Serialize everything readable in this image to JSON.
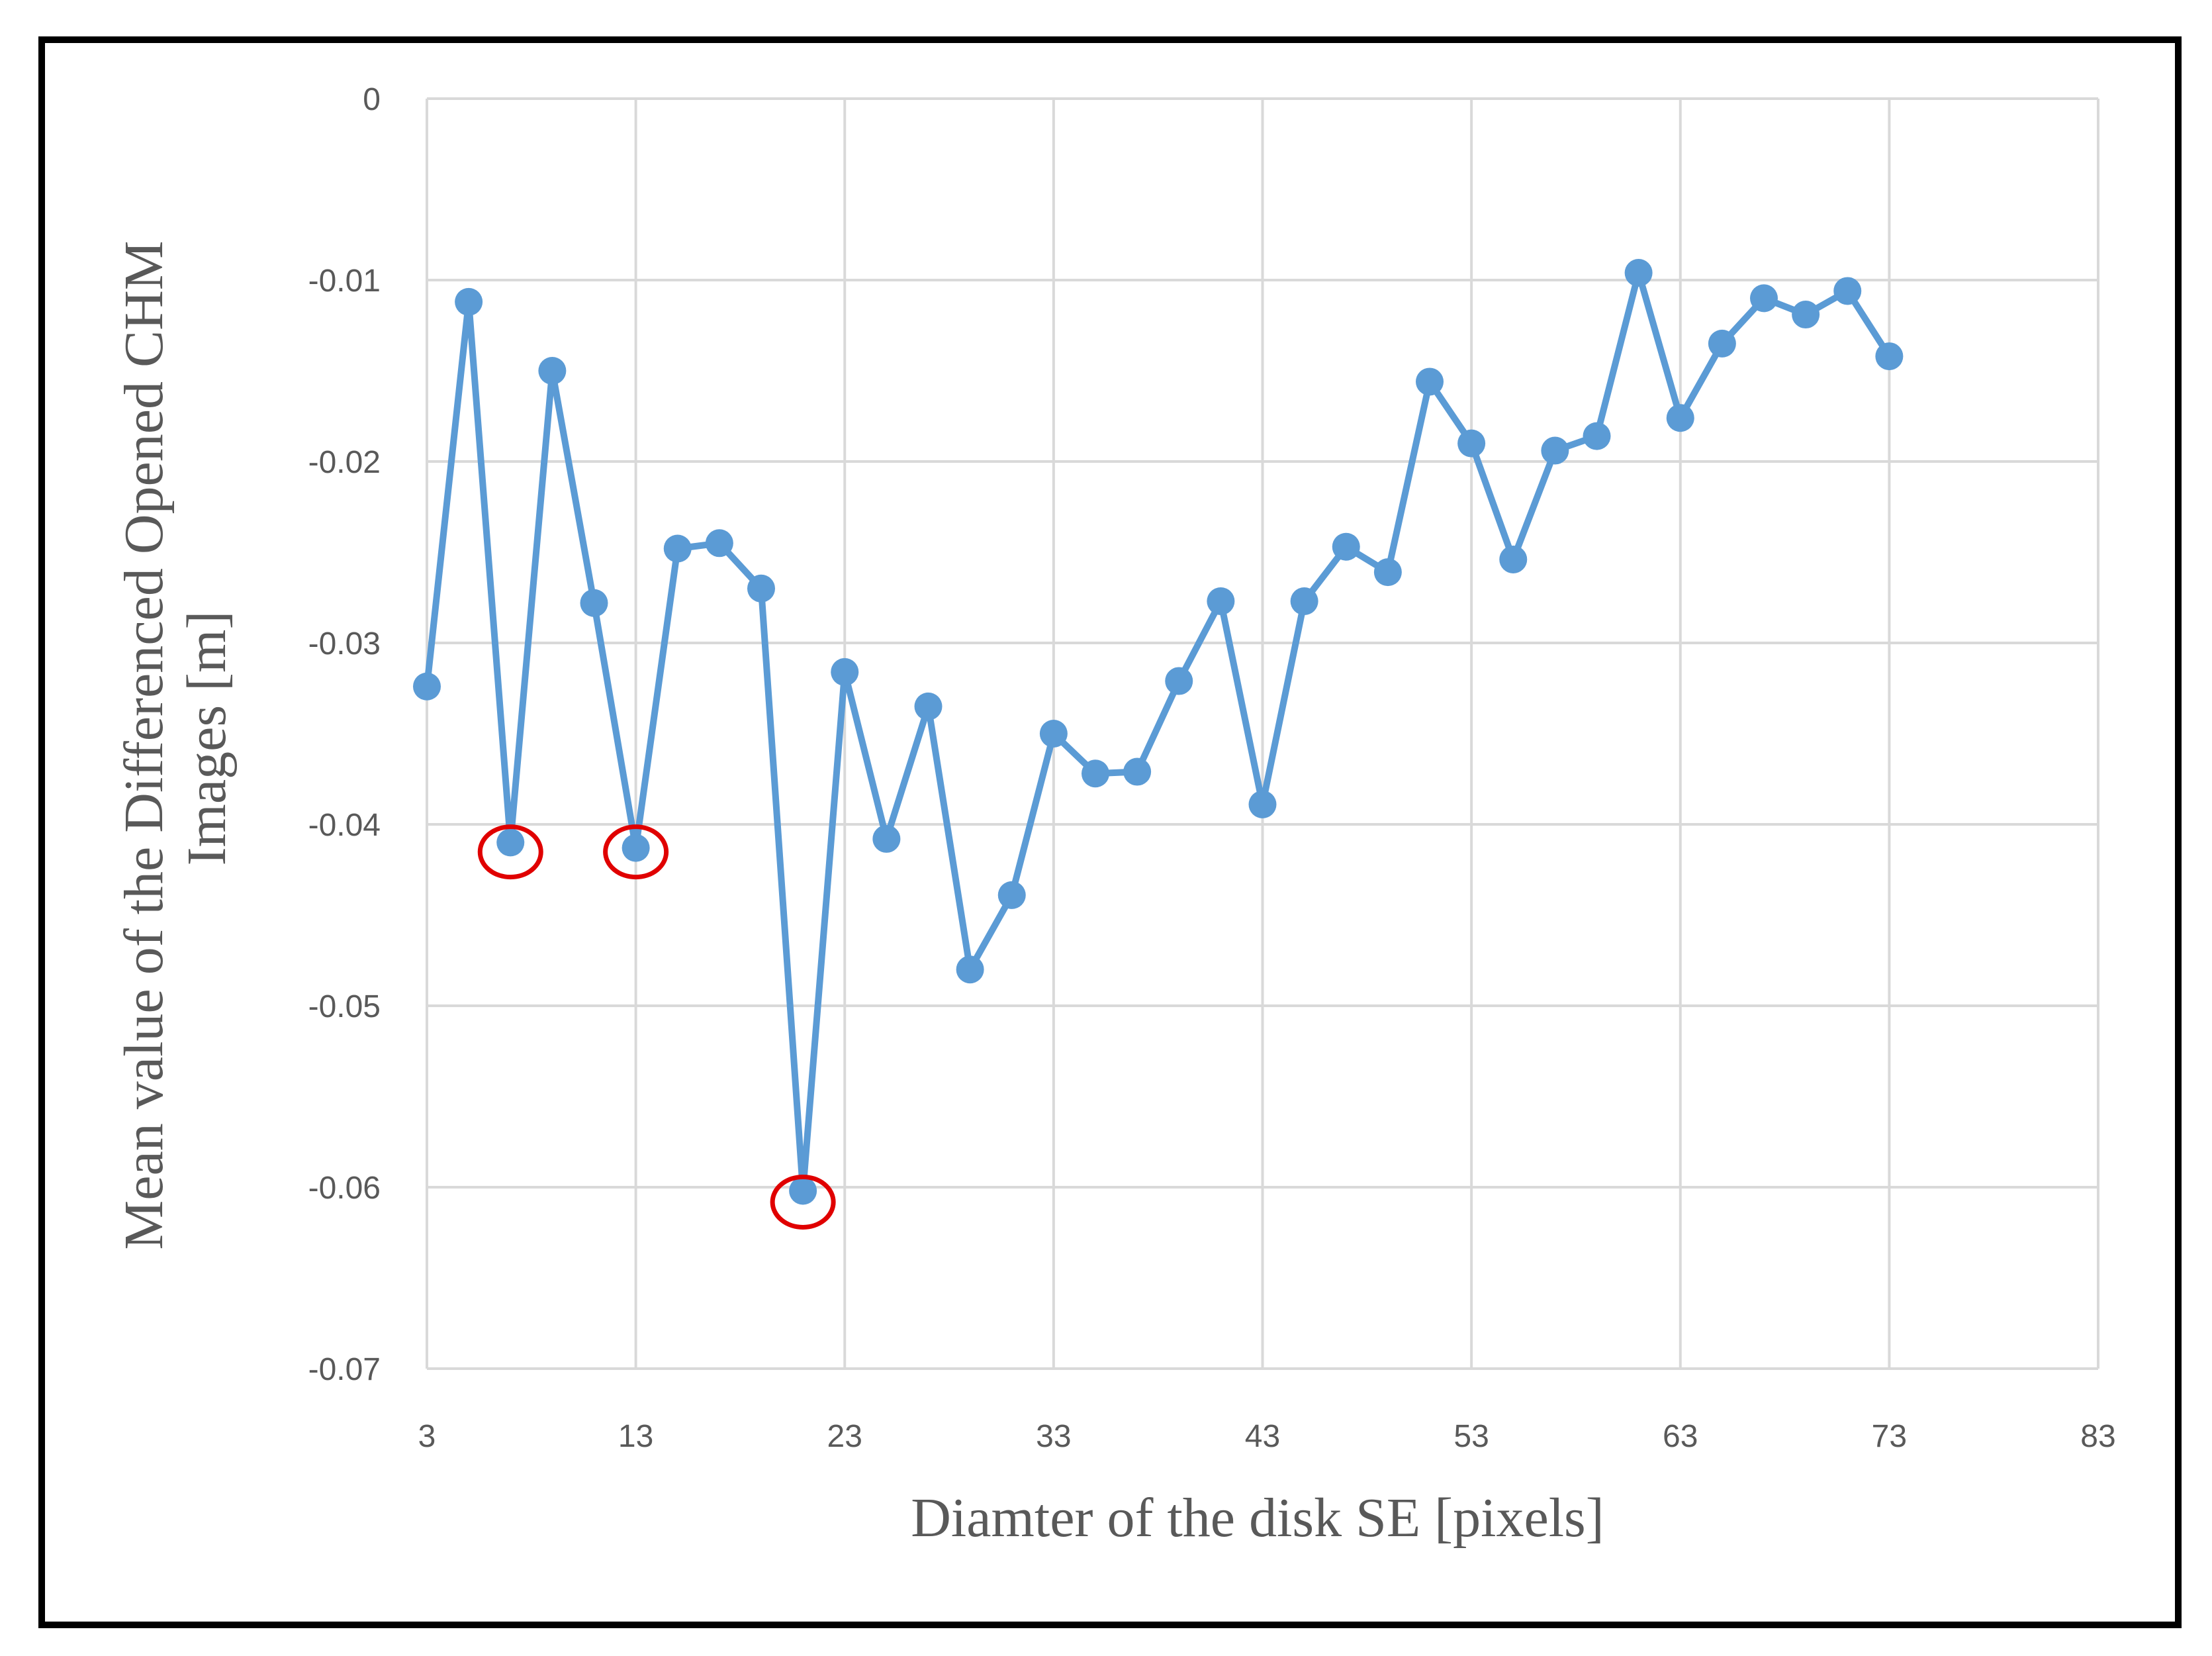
{
  "chart_data": {
    "type": "line",
    "title": "",
    "xlabel": "Diamter of the disk SE  [pixels]",
    "ylabel_lines": [
      "Mean value of the Differenced Opened CHM",
      "Images [m]"
    ],
    "xlim": [
      3,
      83
    ],
    "ylim": [
      -0.07,
      0
    ],
    "x_ticks": [
      3,
      13,
      23,
      33,
      43,
      53,
      63,
      73,
      83
    ],
    "x_tick_labels": [
      "3",
      "13",
      "23",
      "33",
      "43",
      "53",
      "63",
      "73",
      "83"
    ],
    "y_ticks": [
      0,
      -0.01,
      -0.02,
      -0.03,
      -0.04,
      -0.05,
      -0.06,
      -0.07
    ],
    "y_tick_labels": [
      "0",
      "-0.01",
      "-0.02",
      "-0.03",
      "-0.04",
      "-0.05",
      "-0.06",
      "-0.07"
    ],
    "grid": true,
    "legend": "none",
    "series": [
      {
        "color": "#5b9bd5",
        "x": [
          3,
          5,
          7,
          9,
          11,
          13,
          15,
          17,
          19,
          21,
          23,
          25,
          27,
          29,
          31,
          33,
          35,
          37,
          39,
          41,
          43,
          45,
          47,
          49,
          51,
          53,
          55,
          57,
          59,
          61,
          63,
          65,
          67,
          69,
          71,
          73
        ],
        "y": [
          -0.0324,
          -0.0112,
          -0.041,
          -0.015,
          -0.0278,
          -0.0413,
          -0.0248,
          -0.0245,
          -0.027,
          -0.0602,
          -0.0316,
          -0.0408,
          -0.0335,
          -0.048,
          -0.0439,
          -0.035,
          -0.0372,
          -0.0371,
          -0.0321,
          -0.0277,
          -0.0389,
          -0.0277,
          -0.0247,
          -0.0261,
          -0.0156,
          -0.019,
          -0.0254,
          -0.0194,
          -0.0186,
          -0.0096,
          -0.0176,
          -0.0135,
          -0.011,
          -0.0119,
          -0.0106,
          -0.0142
        ]
      }
    ],
    "annotations": [
      {
        "type": "red-circle",
        "x": 7,
        "y": -0.0413,
        "color": "#e00000"
      },
      {
        "type": "red-circle",
        "x": 13,
        "y": -0.0413,
        "color": "#e00000"
      },
      {
        "type": "red-circle",
        "x": 21,
        "y": -0.0606,
        "color": "#e00000"
      }
    ]
  }
}
